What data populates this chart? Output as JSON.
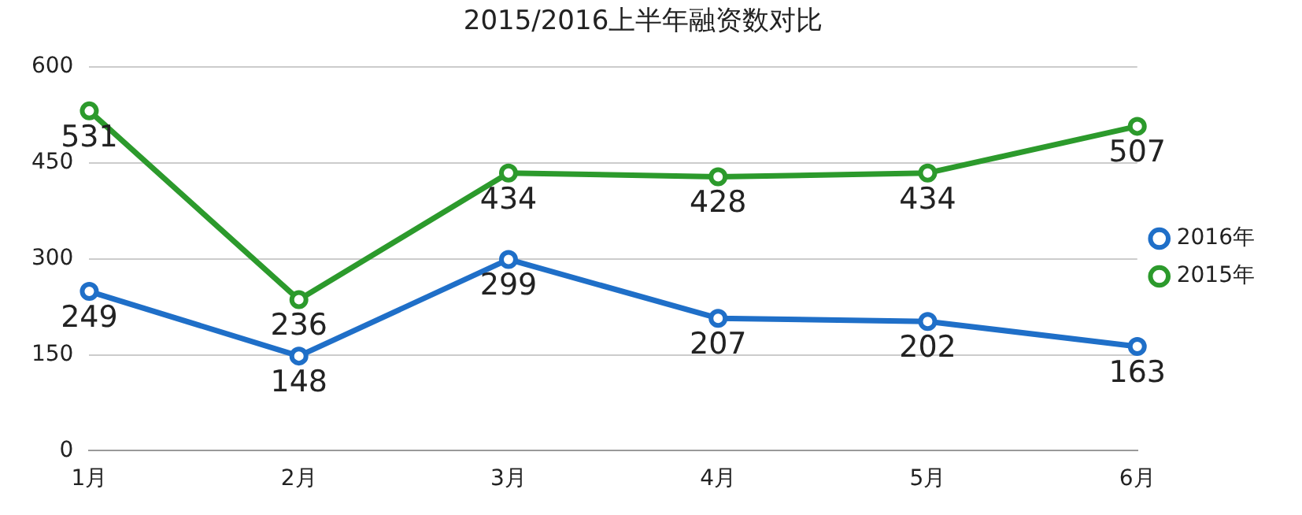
{
  "chart_data": {
    "type": "line",
    "title": "2015/2016上半年融资数对比",
    "categories": [
      "1月",
      "2月",
      "3月",
      "4月",
      "5月",
      "6月"
    ],
    "series": [
      {
        "name": "2016年",
        "color": "#1f6fc8",
        "values": [
          249,
          148,
          299,
          207,
          202,
          163
        ]
      },
      {
        "name": "2015年",
        "color": "#2c9a2c",
        "values": [
          531,
          236,
          434,
          428,
          434,
          507
        ]
      }
    ],
    "ylim": [
      0,
      600
    ],
    "yticks": [
      0,
      150,
      300,
      450,
      600
    ],
    "grid": "y",
    "legend": "right",
    "marker": "circle",
    "line_style": "solid",
    "data_labels": true
  }
}
